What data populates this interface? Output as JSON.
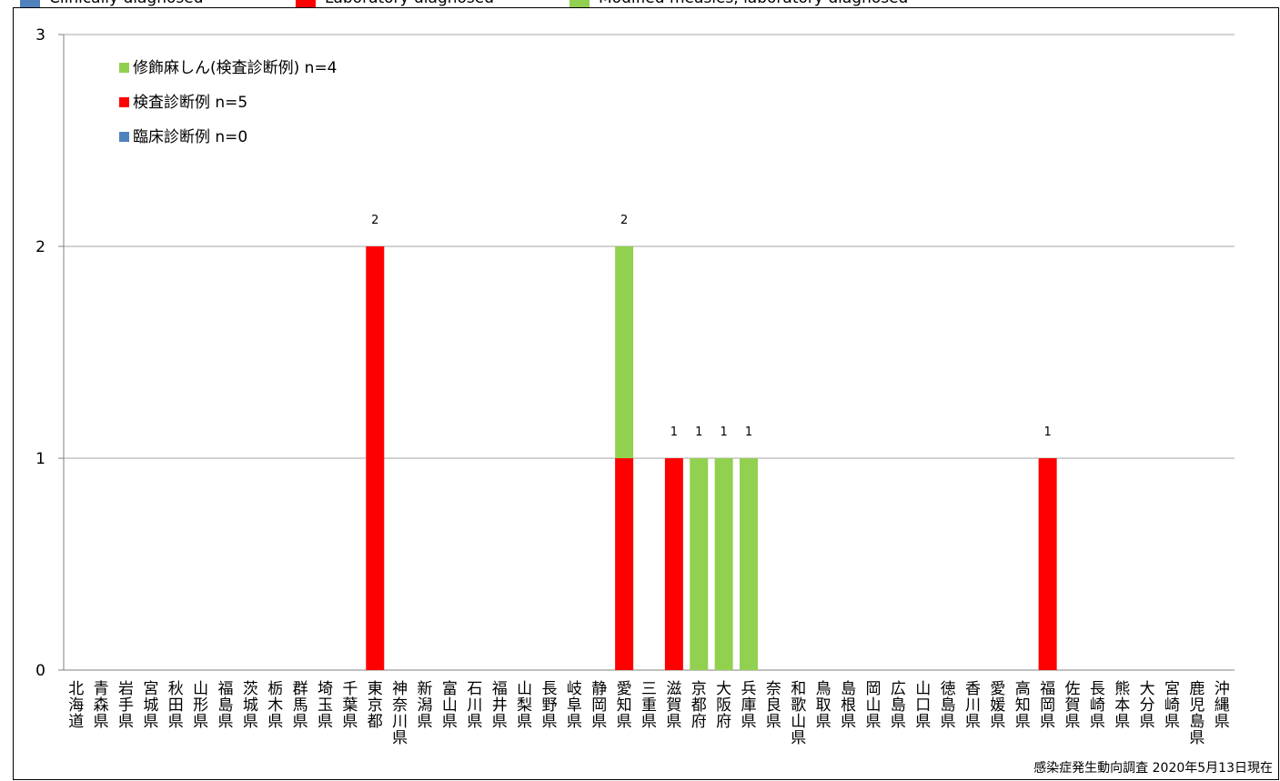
{
  "top_legend": [
    {
      "label": "Clinically diagnosed",
      "color": "#4F81BD"
    },
    {
      "label": "Laboratory diagnosed",
      "color": "#FF0000"
    },
    {
      "label": "Modified measles, laboratory diagnosed",
      "color": "#92D050"
    }
  ],
  "note": "感染症発生動向調査 2020年5月13日現在",
  "chart_data": {
    "type": "bar",
    "stacked": true,
    "categories": [
      "北海道",
      "青森県",
      "岩手県",
      "宮城県",
      "秋田県",
      "山形県",
      "福島県",
      "茨城県",
      "栃木県",
      "群馬県",
      "埼玉県",
      "千葉県",
      "東京都",
      "神奈川県",
      "新潟県",
      "富山県",
      "石川県",
      "福井県",
      "山梨県",
      "長野県",
      "岐阜県",
      "静岡県",
      "愛知県",
      "三重県",
      "滋賀県",
      "京都府",
      "大阪府",
      "兵庫県",
      "奈良県",
      "和歌山県",
      "鳥取県",
      "島根県",
      "岡山県",
      "広島県",
      "山口県",
      "徳島県",
      "香川県",
      "愛媛県",
      "高知県",
      "福岡県",
      "佐賀県",
      "長崎県",
      "熊本県",
      "大分県",
      "宮崎県",
      "鹿児島県",
      "沖縄県"
    ],
    "series": [
      {
        "name": "臨床診断例 n=0",
        "color": "#4F81BD",
        "values": [
          0,
          0,
          0,
          0,
          0,
          0,
          0,
          0,
          0,
          0,
          0,
          0,
          0,
          0,
          0,
          0,
          0,
          0,
          0,
          0,
          0,
          0,
          0,
          0,
          0,
          0,
          0,
          0,
          0,
          0,
          0,
          0,
          0,
          0,
          0,
          0,
          0,
          0,
          0,
          0,
          0,
          0,
          0,
          0,
          0,
          0,
          0
        ]
      },
      {
        "name": "検査診断例 n=5",
        "color": "#FF0000",
        "values": [
          0,
          0,
          0,
          0,
          0,
          0,
          0,
          0,
          0,
          0,
          0,
          0,
          2,
          0,
          0,
          0,
          0,
          0,
          0,
          0,
          0,
          0,
          1,
          0,
          1,
          0,
          0,
          0,
          0,
          0,
          0,
          0,
          0,
          0,
          0,
          0,
          0,
          0,
          0,
          1,
          0,
          0,
          0,
          0,
          0,
          0,
          0
        ]
      },
      {
        "name": "修飾麻しん(検査診断例) n=4",
        "color": "#92D050",
        "values": [
          0,
          0,
          0,
          0,
          0,
          0,
          0,
          0,
          0,
          0,
          0,
          0,
          0,
          0,
          0,
          0,
          0,
          0,
          0,
          0,
          0,
          0,
          1,
          0,
          0,
          1,
          1,
          1,
          0,
          0,
          0,
          0,
          0,
          0,
          0,
          0,
          0,
          0,
          0,
          0,
          0,
          0,
          0,
          0,
          0,
          0,
          0
        ]
      }
    ],
    "legend_order": [
      2,
      1,
      0
    ],
    "legend_position": "top-left",
    "ylim": [
      0,
      3
    ],
    "yticks": [
      0,
      1,
      2,
      3
    ],
    "grid": true,
    "xlabel": "",
    "ylabel": "",
    "title": ""
  }
}
